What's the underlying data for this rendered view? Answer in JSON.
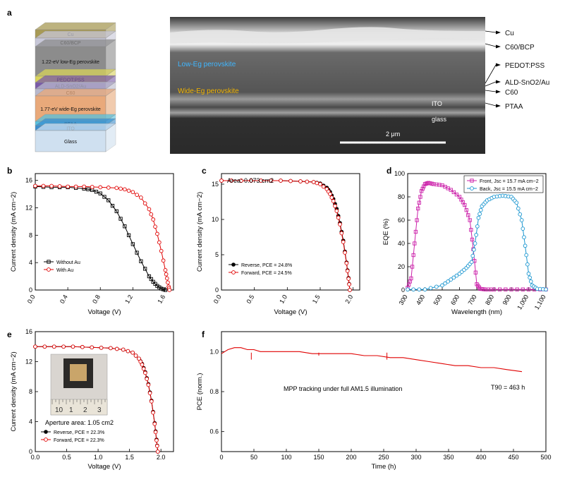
{
  "panel_labels": {
    "a": "a",
    "b": "b",
    "c": "c",
    "d": "d",
    "e": "e",
    "f": "f"
  },
  "stack": {
    "layers": [
      {
        "label": "Cu",
        "color": "#a89a55"
      },
      {
        "label": "C60/BCP",
        "color": "#c7c7d8"
      },
      {
        "label": "1.22-eV low-Eg perovskite",
        "color": "#8c8c8c"
      },
      {
        "label": "PEDOT:PSS",
        "color": "#d9d35a"
      },
      {
        "label": "ALD-SnO2/Au",
        "color": "#7a5aa8"
      },
      {
        "label": "C60",
        "color": "#b8b8cc"
      },
      {
        "label": "1.77-eV wide-Eg perovskite",
        "color": "#e9a97a"
      },
      {
        "label": "PTAA",
        "color": "#57c2df"
      },
      {
        "label": "ITO",
        "color": "#3a8fd0"
      },
      {
        "label": "Glass",
        "color": "#cfe0f0"
      }
    ]
  },
  "sem": {
    "low_label": "Low-Eg perovskite",
    "wide_label": "Wide-Eg perovskite",
    "ito": "ITO",
    "glass": "glass",
    "scale": "2 μm",
    "callouts": [
      "Cu",
      "C60/BCP",
      "PEDOT:PSS",
      "ALD-SnO2/Au",
      "C60",
      "PTAA"
    ]
  },
  "chart_data": [
    {
      "panel": "b",
      "type": "line",
      "xlabel": "Voltage (V)",
      "ylabel": "Current density (mA cm−2)",
      "xlim": [
        0.0,
        1.7
      ],
      "ylim": [
        0,
        17
      ],
      "xticks": [
        "0.0",
        "0.4",
        "0.8",
        "1.2",
        "1.6"
      ],
      "yticks": [
        "0",
        "4",
        "8",
        "12",
        "16"
      ],
      "series": [
        {
          "name": "Without Au",
          "color": "#000000",
          "marker": "square",
          "x": [
            0,
            0.2,
            0.4,
            0.6,
            0.7,
            0.8,
            0.9,
            1.0,
            1.1,
            1.2,
            1.3,
            1.4,
            1.45,
            1.5,
            1.55,
            1.6
          ],
          "y": [
            15.1,
            15.0,
            15.0,
            14.8,
            14.6,
            14.1,
            13.1,
            11.5,
            9.3,
            6.7,
            4.2,
            2.0,
            1.2,
            0.6,
            0.2,
            0.0
          ]
        },
        {
          "name": "With Au",
          "color": "#e00000",
          "marker": "circle",
          "x": [
            0,
            0.2,
            0.4,
            0.6,
            0.8,
            1.0,
            1.1,
            1.2,
            1.3,
            1.4,
            1.45,
            1.5,
            1.55,
            1.6,
            1.62,
            1.64,
            1.65
          ],
          "y": [
            15.2,
            15.2,
            15.1,
            15.1,
            15.0,
            14.9,
            14.7,
            14.3,
            13.5,
            11.8,
            10.3,
            8.2,
            5.7,
            2.9,
            1.7,
            0.5,
            0.0
          ]
        }
      ]
    },
    {
      "panel": "c",
      "type": "line",
      "title": "Area: 0.073 cm2",
      "xlabel": "Voltage (V)",
      "ylabel": "Current density (mA cm−2)",
      "xlim": [
        0.0,
        2.1
      ],
      "ylim": [
        0,
        16.5
      ],
      "xticks": [
        "0.0",
        "0.5",
        "1.0",
        "1.5",
        "2.0"
      ],
      "yticks": [
        "0",
        "5",
        "10",
        "15"
      ],
      "series": [
        {
          "name": "Reverse, PCE = 24.8%",
          "color": "#000000",
          "marker": "filled-circle",
          "x": [
            0,
            0.3,
            0.6,
            0.9,
            1.2,
            1.4,
            1.5,
            1.6,
            1.65,
            1.7,
            1.75,
            1.8,
            1.85,
            1.9,
            1.93,
            1.95
          ],
          "y": [
            15.5,
            15.5,
            15.5,
            15.5,
            15.4,
            15.3,
            15.1,
            14.5,
            13.9,
            12.9,
            11.5,
            9.5,
            7.0,
            3.9,
            1.7,
            0.0
          ]
        },
        {
          "name": "Forward, PCE = 24.5%",
          "color": "#e00000",
          "marker": "circle",
          "x": [
            0,
            0.3,
            0.6,
            0.9,
            1.2,
            1.4,
            1.5,
            1.6,
            1.65,
            1.7,
            1.75,
            1.8,
            1.85,
            1.9,
            1.93,
            1.95
          ],
          "y": [
            15.5,
            15.5,
            15.5,
            15.5,
            15.4,
            15.3,
            15.0,
            14.3,
            13.6,
            12.6,
            11.2,
            9.3,
            6.8,
            3.8,
            1.6,
            0.0
          ]
        }
      ]
    },
    {
      "panel": "d",
      "type": "line",
      "xlabel": "Wavelength (nm)",
      "ylabel": "EQE (%)",
      "xlim": [
        300,
        1100
      ],
      "ylim": [
        0,
        100
      ],
      "xticks": [
        "300",
        "400",
        "500",
        "600",
        "700",
        "800",
        "900",
        "1,000",
        "1,100"
      ],
      "yticks": [
        "0",
        "20",
        "40",
        "60",
        "80",
        "100"
      ],
      "series": [
        {
          "name": "Front, Jsc = 15.7 mA cm−2",
          "color": "#cc22aa",
          "marker": "square",
          "x": [
            300,
            320,
            340,
            360,
            380,
            400,
            420,
            450,
            500,
            550,
            600,
            630,
            660,
            680,
            700,
            720,
            750,
            800,
            900,
            1000,
            1100
          ],
          "y": [
            2,
            10,
            40,
            70,
            85,
            91,
            92,
            91,
            90,
            86,
            80,
            73,
            60,
            35,
            5,
            1,
            0.5,
            0.5,
            0.5,
            0.5,
            0.5
          ]
        },
        {
          "name": "Back, Jsc = 15.5 mA cm−2",
          "color": "#1a96d0",
          "marker": "circle",
          "x": [
            300,
            400,
            500,
            550,
            600,
            640,
            670,
            690,
            710,
            730,
            760,
            800,
            850,
            900,
            930,
            960,
            980,
            1000,
            1020,
            1050,
            1100
          ],
          "y": [
            0.5,
            0.5,
            4,
            9,
            14,
            19,
            24,
            40,
            62,
            72,
            77,
            80,
            81,
            80,
            75,
            60,
            38,
            14,
            4,
            1,
            0.5
          ]
        }
      ]
    },
    {
      "panel": "e",
      "type": "line",
      "xlabel": "Voltage (V)",
      "ylabel": "Current density (mA cm−2)",
      "xlim": [
        0.0,
        2.2
      ],
      "ylim": [
        0,
        16
      ],
      "xticks": [
        "0.0",
        "0.5",
        "1.0",
        "1.5",
        "2.0"
      ],
      "yticks": [
        "0",
        "4",
        "8",
        "12",
        "16"
      ],
      "annotation": "Aperture area: 1.05 cm2",
      "ruler_labels": [
        "10",
        "1",
        "2",
        "3"
      ],
      "series": [
        {
          "name": "Reverse, PCE = 22.3%",
          "color": "#000000",
          "marker": "filled-circle",
          "x": [
            0,
            0.3,
            0.6,
            0.9,
            1.2,
            1.4,
            1.55,
            1.65,
            1.7,
            1.75,
            1.8,
            1.85,
            1.9,
            1.93,
            1.95
          ],
          "y": [
            14.0,
            14.0,
            14.0,
            13.9,
            13.8,
            13.6,
            13.2,
            12.4,
            11.7,
            10.6,
            9.0,
            6.8,
            3.8,
            1.6,
            0.0
          ]
        },
        {
          "name": "Forward, PCE = 22.3%",
          "color": "#e00000",
          "marker": "circle",
          "x": [
            0,
            0.3,
            0.6,
            0.9,
            1.2,
            1.4,
            1.55,
            1.65,
            1.7,
            1.75,
            1.8,
            1.85,
            1.9,
            1.93,
            1.95
          ],
          "y": [
            14.0,
            14.0,
            14.0,
            13.9,
            13.8,
            13.6,
            13.2,
            12.4,
            11.6,
            10.5,
            8.9,
            6.7,
            3.7,
            1.5,
            0.0
          ]
        }
      ]
    },
    {
      "panel": "f",
      "type": "line",
      "xlabel": "Time (h)",
      "ylabel": "PCE (norm.)",
      "xlim": [
        0,
        500
      ],
      "ylim": [
        0.5,
        1.1
      ],
      "xticks": [
        "0",
        "50",
        "100",
        "150",
        "200",
        "250",
        "300",
        "350",
        "400",
        "450",
        "500"
      ],
      "yticks": [
        "0.6",
        "0.8",
        "1.0"
      ],
      "annotation": "MPP tracking under full AM1.5 illumination",
      "t90": "T90 = 463 h",
      "series": [
        {
          "color": "#e00000",
          "x": [
            0,
            5,
            10,
            20,
            30,
            40,
            50,
            60,
            80,
            100,
            120,
            140,
            160,
            180,
            200,
            220,
            240,
            260,
            280,
            300,
            320,
            340,
            360,
            380,
            400,
            420,
            440,
            463
          ],
          "y": [
            0.99,
            1.0,
            1.01,
            1.02,
            1.02,
            1.01,
            1.01,
            1.0,
            1.0,
            1.0,
            1.0,
            0.99,
            0.99,
            0.99,
            0.99,
            0.98,
            0.98,
            0.97,
            0.97,
            0.96,
            0.95,
            0.94,
            0.93,
            0.93,
            0.92,
            0.92,
            0.91,
            0.9
          ]
        }
      ]
    }
  ]
}
